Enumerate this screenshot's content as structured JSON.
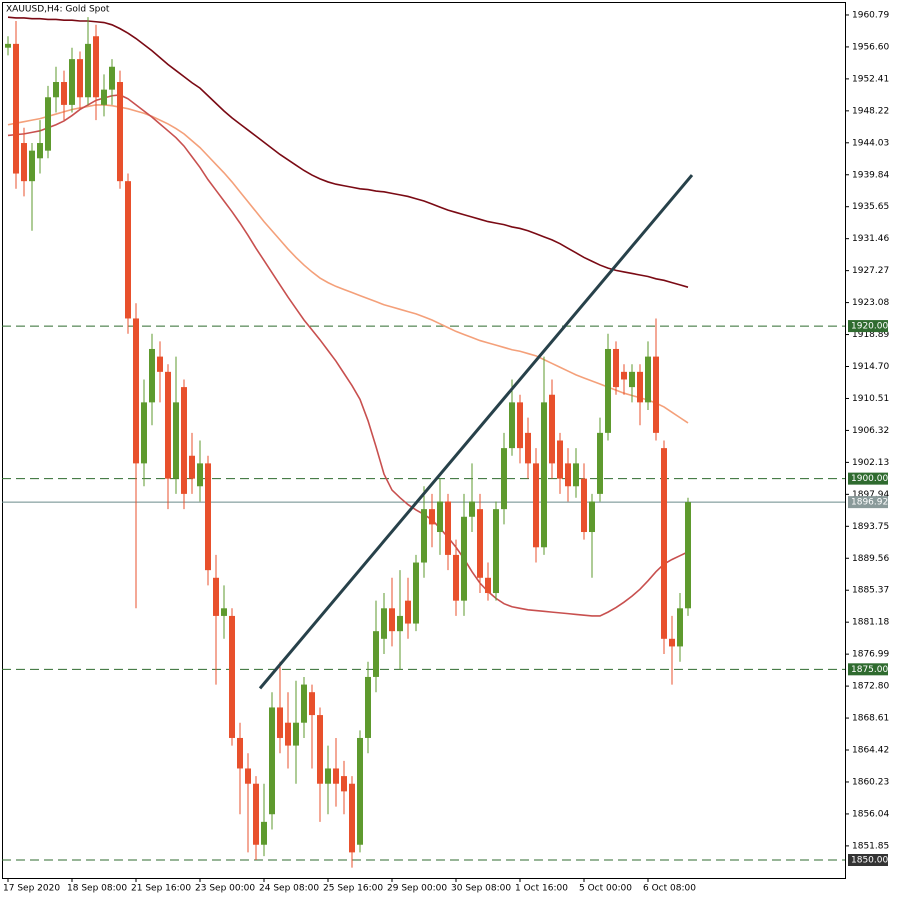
{
  "chart_data": {
    "type": "candlestick",
    "title": "XAUUSD,H4:  Gold Spot",
    "up_color": "#5e9a2e",
    "down_color": "#e8502c",
    "ylim": [
      1847.64,
      1962.49
    ],
    "yticks": [
      1960.79,
      {
        "value": 1956.6,
        "label": "1956.60"
      },
      1952.41,
      1948.22,
      1944.03,
      1939.84,
      1935.65,
      1931.46,
      1927.27,
      1923.08,
      1918.89,
      {
        "value": 1914.7,
        "label": "1914.70"
      },
      1910.51,
      1906.32,
      1902.13,
      1897.94,
      1893.75,
      1889.56,
      1885.37,
      1881.18,
      1876.99,
      {
        "value": 1872.8,
        "label": "1872.80"
      },
      1868.61,
      1864.42,
      1860.23,
      1856.04,
      1851.85
    ],
    "categories": [
      "17 Sep 2020",
      null,
      null,
      null,
      null,
      null,
      null,
      null,
      "18 Sep 08:00",
      null,
      null,
      null,
      null,
      null,
      null,
      null,
      "21 Sep 16:00",
      null,
      null,
      null,
      null,
      null,
      null,
      null,
      "23 Sep 00:00",
      null,
      null,
      null,
      null,
      null,
      null,
      null,
      "24 Sep 08:00",
      null,
      null,
      null,
      null,
      null,
      null,
      null,
      "25 Sep 16:00",
      null,
      null,
      null,
      null,
      null,
      null,
      null,
      "29 Sep 00:00",
      null,
      null,
      null,
      null,
      null,
      null,
      null,
      "30 Sep 08:00",
      null,
      null,
      null,
      null,
      null,
      null,
      null,
      "1 Oct 16:00",
      null,
      null,
      null,
      null,
      null,
      null,
      null,
      "5 Oct 00:00",
      null,
      null,
      null,
      null,
      null,
      null,
      null,
      "6 Oct 08:00",
      null,
      null,
      null,
      null,
      null
    ],
    "open": [
      1956.5,
      1957,
      1944,
      1939,
      1942,
      1943,
      1950,
      1952,
      1949,
      1955,
      1950,
      1958,
      1949,
      1951,
      1952,
      1939,
      1921,
      1902,
      1910,
      1916,
      1914,
      1900,
      1912,
      1903,
      1899,
      1902,
      1887,
      1882,
      1882,
      1866,
      1862,
      1860,
      1852,
      1856,
      1870,
      1868,
      1865,
      1868,
      1872,
      1869,
      1860,
      1862,
      1861,
      1860,
      1852,
      1866,
      1874,
      1879,
      1883,
      1880,
      1884,
      1881,
      1889,
      1896,
      1893,
      1897,
      1890,
      1884,
      1895,
      1896,
      1887,
      1885,
      1896,
      1904,
      1910,
      1906,
      1902,
      1891,
      1911,
      1905,
      1902,
      1899,
      1900,
      1893,
      1898,
      1906,
      1917,
      1914,
      1912,
      1914,
      1910,
      1916,
      1904,
      1879,
      1878,
      1883
    ],
    "high": [
      1958,
      1960,
      1946,
      1944,
      1947,
      1951.5,
      1954,
      1953.5,
      1956.5,
      1956,
      1960.5,
      1959.5,
      1953,
      1955,
      1953.5,
      1940,
      1923,
      1913,
      1919,
      1918,
      1915,
      1916,
      1913,
      1906,
      1905,
      1903,
      1890,
      1886,
      1883,
      1868,
      1864,
      1861,
      1860,
      1872,
      1876,
      1872,
      1873.5,
      1874,
      1873,
      1870,
      1865,
      1866,
      1863,
      1861,
      1867,
      1876,
      1884,
      1885,
      1887,
      1888,
      1887,
      1890,
      1899,
      1898,
      1900,
      1898,
      1892,
      1898,
      1902,
      1898,
      1889,
      1897,
      1906,
      1913,
      1911,
      1908,
      1904,
      1916,
      1913,
      1906,
      1904,
      1904,
      1902,
      1898,
      1908,
      1919,
      1918,
      1915,
      1915,
      1915,
      1918,
      1921,
      1905,
      1882,
      1885,
      1897.5
    ],
    "low": [
      1955.5,
      1938,
      1937,
      1932.5,
      1940,
      1942,
      1948,
      1947,
      1948,
      1948.5,
      1949,
      1947,
      1947.5,
      1949,
      1938,
      1919,
      1883,
      1899,
      1907,
      1910,
      1896,
      1898,
      1896,
      1898,
      1897,
      1886,
      1873,
      1879,
      1865,
      1856,
      1851,
      1850,
      1850.5,
      1854,
      1864,
      1862,
      1860,
      1866,
      1862,
      1855,
      1856,
      1857,
      1856,
      1849,
      1851,
      1864,
      1872,
      1877,
      1878,
      1875,
      1879,
      1880,
      1887,
      1891,
      1890,
      1888,
      1882,
      1882,
      1893,
      1885,
      1884,
      1884,
      1894,
      1903,
      1902,
      1900,
      1889,
      1890,
      1900,
      1898,
      1897,
      1897.5,
      1892,
      1887,
      1897,
      1905,
      1911,
      1911,
      1910,
      1907,
      1909,
      1905,
      1877,
      1873,
      1876,
      1882
    ],
    "close": [
      1957,
      1940,
      1939,
      1943,
      1944,
      1950,
      1952,
      1949,
      1955,
      1950,
      1957,
      1950,
      1951,
      1954,
      1939,
      1921,
      1902,
      1910,
      1917,
      1914,
      1900,
      1910,
      1898,
      1900,
      1902,
      1888,
      1882,
      1883,
      1866,
      1862,
      1860,
      1852,
      1855,
      1870,
      1866,
      1865,
      1868,
      1873,
      1869,
      1860,
      1862,
      1860,
      1859,
      1851,
      1866,
      1874,
      1880,
      1883,
      1880,
      1882,
      1881,
      1889,
      1896,
      1894,
      1897,
      1890,
      1884,
      1895,
      1897,
      1887,
      1885,
      1896,
      1904,
      1910,
      1904,
      1902,
      1891,
      1910,
      1902,
      1900,
      1899,
      1902,
      1893,
      1897,
      1906,
      1917,
      1912,
      1913,
      1914,
      1910,
      1916,
      1906,
      1879,
      1878,
      1883,
      1896.92
    ],
    "lines": [
      {
        "color": "#7a0a14",
        "values": [
          1960.5,
          1960.4,
          1960.4,
          1960.3,
          1960.3,
          1960.2,
          1960.2,
          1960.1,
          1960.1,
          1960.0,
          1960.0,
          1959.9,
          1959.8,
          1959.5,
          1959.0,
          1958.4,
          1957.7,
          1956.9,
          1956.1,
          1955.2,
          1954.3,
          1953.5,
          1952.7,
          1951.9,
          1951.2,
          1950.2,
          1949.2,
          1948.2,
          1947.3,
          1946.5,
          1945.7,
          1944.9,
          1944.1,
          1943.3,
          1942.5,
          1941.8,
          1941.1,
          1940.4,
          1939.8,
          1939.3,
          1938.9,
          1938.6,
          1938.4,
          1938.2,
          1938.0,
          1937.9,
          1937.7,
          1937.6,
          1937.4,
          1937.2,
          1937.0,
          1936.7,
          1936.4,
          1936.0,
          1935.6,
          1935.2,
          1934.9,
          1934.6,
          1934.3,
          1934.0,
          1933.7,
          1933.5,
          1933.3,
          1933.0,
          1932.8,
          1932.5,
          1932.1,
          1931.7,
          1931.3,
          1930.8,
          1930.2,
          1929.6,
          1929.0,
          1928.5,
          1928.0,
          1927.6,
          1927.3,
          1927.1,
          1926.9,
          1926.7,
          1926.5,
          1926.2,
          1926.0,
          1925.7,
          1925.4,
          1925.1
        ]
      },
      {
        "color": "#f4a07a",
        "values": [
          1946.4,
          1946.6,
          1946.8,
          1947.0,
          1947.2,
          1947.5,
          1947.8,
          1948.1,
          1948.4,
          1948.6,
          1948.8,
          1949.0,
          1949.0,
          1948.9,
          1948.7,
          1948.5,
          1948.2,
          1947.9,
          1947.5,
          1947.0,
          1946.5,
          1945.9,
          1945.2,
          1944.3,
          1943.4,
          1942.3,
          1941.2,
          1940.1,
          1938.9,
          1937.6,
          1936.3,
          1935.0,
          1933.7,
          1932.5,
          1931.3,
          1930.1,
          1929.0,
          1928.0,
          1927.1,
          1926.3,
          1925.7,
          1925.2,
          1924.8,
          1924.4,
          1924.0,
          1923.6,
          1923.2,
          1922.8,
          1922.5,
          1922.2,
          1921.9,
          1921.6,
          1921.2,
          1920.8,
          1920.3,
          1919.8,
          1919.3,
          1918.9,
          1918.5,
          1918.1,
          1917.8,
          1917.5,
          1917.2,
          1916.9,
          1916.7,
          1916.4,
          1916.1,
          1915.6,
          1915.1,
          1914.6,
          1914.1,
          1913.6,
          1913.2,
          1912.8,
          1912.4,
          1912.0,
          1911.6,
          1911.2,
          1910.9,
          1910.6,
          1910.3,
          1909.9,
          1909.4,
          1908.7,
          1908.0,
          1907.3
        ]
      },
      {
        "color": "#c8504f",
        "values": [
          1945.0,
          1945.1,
          1945.2,
          1945.4,
          1945.6,
          1946.0,
          1946.4,
          1946.9,
          1947.6,
          1948.4,
          1949.0,
          1949.6,
          1949.9,
          1950.2,
          1950.3,
          1949.8,
          1949.0,
          1948.2,
          1947.4,
          1946.5,
          1945.6,
          1944.7,
          1943.6,
          1942.2,
          1940.8,
          1939.2,
          1937.8,
          1936.4,
          1935.0,
          1933.5,
          1931.9,
          1930.2,
          1928.6,
          1927.0,
          1925.4,
          1923.8,
          1922.3,
          1920.8,
          1919.5,
          1918.2,
          1916.8,
          1915.4,
          1913.8,
          1912.2,
          1910.4,
          1907.6,
          1904.2,
          1900.6,
          1898.5,
          1897.5,
          1896.6,
          1895.9,
          1895.3,
          1894.6,
          1893.5,
          1892.3,
          1891.0,
          1889.5,
          1887.8,
          1886.3,
          1885.2,
          1884.3,
          1883.6,
          1883.2,
          1883.0,
          1882.8,
          1882.7,
          1882.6,
          1882.5,
          1882.4,
          1882.3,
          1882.2,
          1882.1,
          1882.0,
          1882.0,
          1882.5,
          1883.1,
          1883.8,
          1884.6,
          1885.5,
          1886.6,
          1887.8,
          1888.8,
          1889.4,
          1889.9,
          1890.4
        ]
      }
    ],
    "levels": [
      {
        "value": 1920,
        "label": "1920.00"
      },
      {
        "value": 1900,
        "label": "1900.00"
      },
      {
        "value": 1875,
        "label": "1875.00"
      },
      {
        "value": 1850,
        "label": "1850.00"
      }
    ],
    "level_color": "#2f6b2f",
    "last_price": 1896.92,
    "trendline": {
      "color": "#27414a",
      "x": [
        31.5,
        85.5
      ],
      "y": [
        1872.5,
        1939.8
      ]
    }
  }
}
